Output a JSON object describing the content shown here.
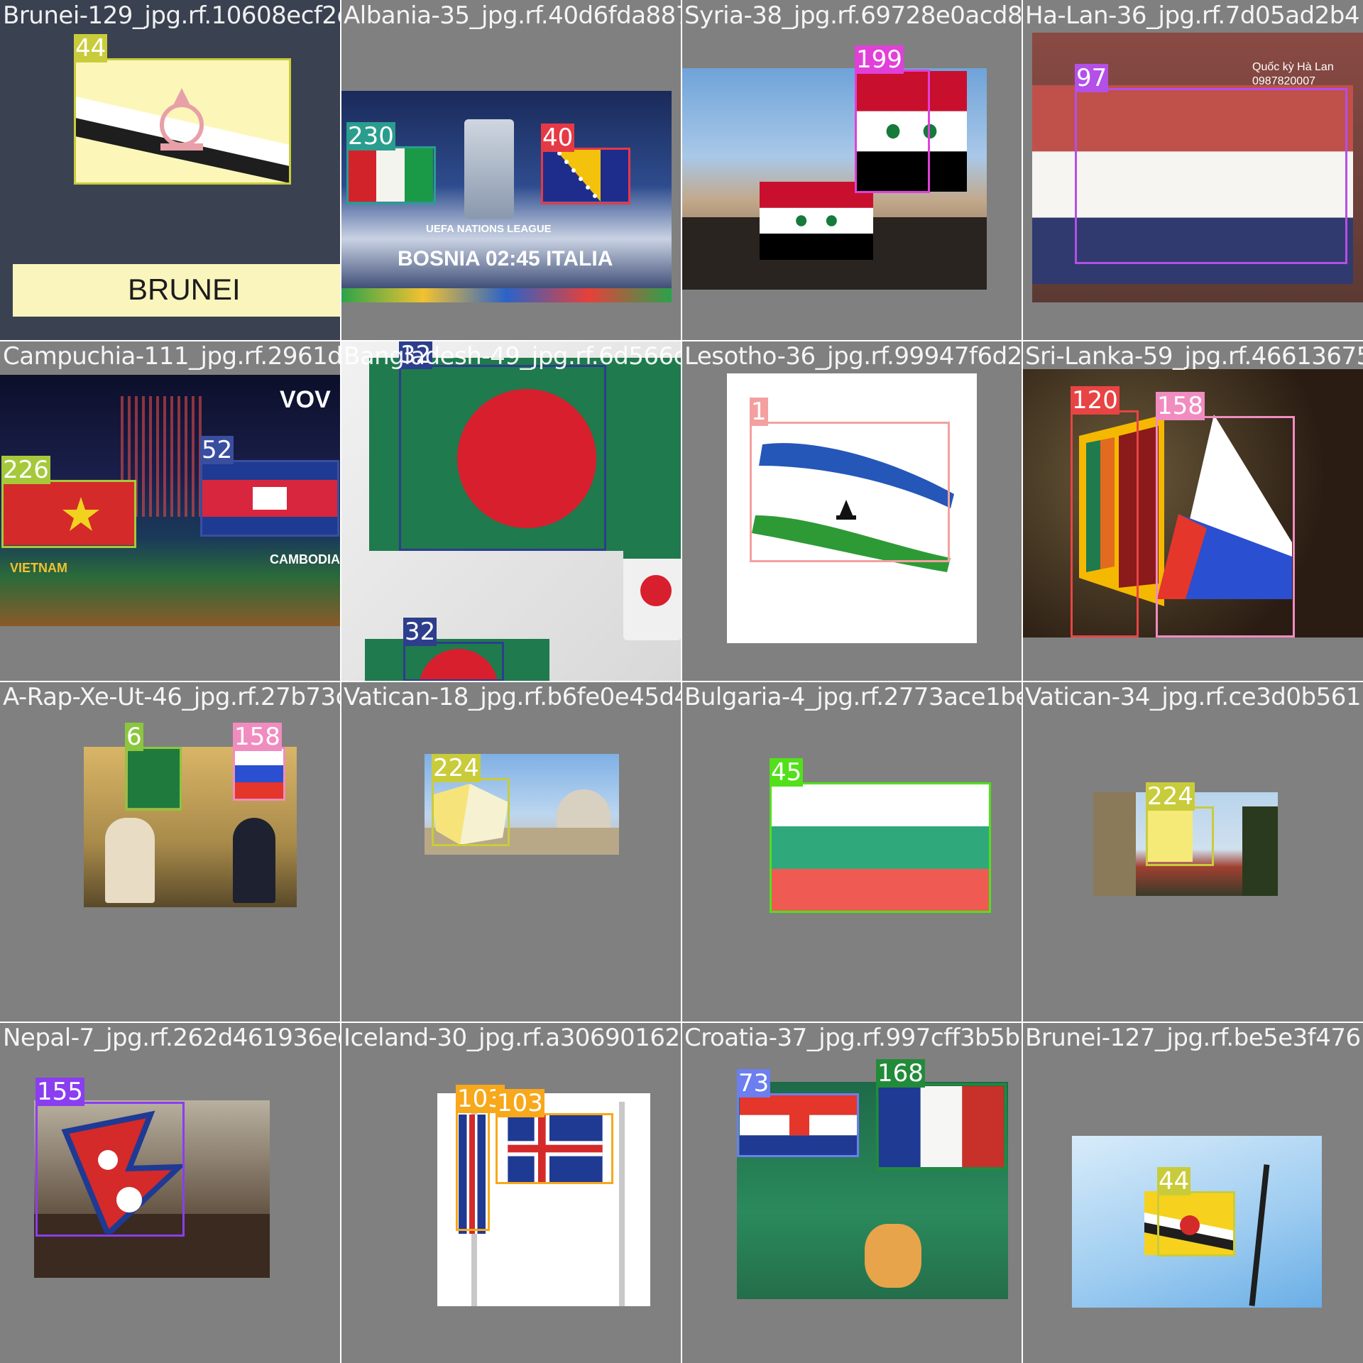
{
  "filenames": [
    "Brunei-129_jpg.rf.10608ecf2d09fb3f322af0",
    "Albania-35_jpg.rf.40d6fda887d56af.69728e0acd85",
    "Syria-38_jpg.rf.69728e0acd8f5dad47d1579",
    "Ha-Lan-36_jpg.rf.7d05ad2b4",
    "Campuchia-111_jpg.rf.2961d0ab5fd44129",
    "Bangladesh-49_jpg.rf.6d566c45f0465b5b9",
    "Lesotho-36_jpg.rf.99947f6d2d7229cd69e38",
    "Sri-Lanka-59_jpg.rf.466136752c",
    "A-Rap-Xe-Ut-46_jpg.rf.27b73d453724d3918",
    "Vatican-18_jpg.rf.b6fe0e45d4a4a901e4fe3",
    "Bulgaria-4_jpg.rf.2773ace1be7db8f504c5b",
    "Vatican-34_jpg.rf.ce3d0b561",
    "Nepal-7_jpg.rf.262d461936ed53a3209d9328",
    "Iceland-30_jpg.rf.a306901626da8c731e7ab",
    "Croatia-37_jpg.rf.997cff3b5b3e86c12b658",
    "Brunei-127_jpg.rf.be5e3f476"
  ],
  "labels": {
    "c0": [
      "44"
    ],
    "c1": [
      "230",
      "40"
    ],
    "c2": [
      "199"
    ],
    "c3": [
      "97"
    ],
    "c4": [
      "226",
      "52"
    ],
    "c5": [
      "32",
      "32"
    ],
    "c6": [
      "1"
    ],
    "c7": [
      "120",
      "158"
    ],
    "c8": [
      "6",
      "158"
    ],
    "c9": [
      "224"
    ],
    "c10": [
      "45"
    ],
    "c11": [
      "224"
    ],
    "c12": [
      "155"
    ],
    "c13": [
      "103",
      "103"
    ],
    "c14": [
      "73",
      "168"
    ],
    "c15": [
      "44"
    ]
  },
  "scene_text": {
    "brunei_caption": "BRUNEI",
    "uefa_match": "BOSNIA 02:45 ITALIA",
    "uefa_league": "UEFA NATIONS LEAGUE",
    "vov": "VOV",
    "vietnam": "VIETNAM",
    "cambodia": "CAMBODIA",
    "sign_line1": "Quốc kỳ Hà Lan",
    "sign_line2": "0987820007"
  },
  "box_colors": {
    "44": "#c9cc3a",
    "230": "#2a9d8f",
    "40": "#e63946",
    "199": "#e040d8",
    "97": "#b44fe8",
    "226": "#a5c93a",
    "52": "#3a4ea0",
    "32": "#2c3e8c",
    "1": "#f4a0a0",
    "120": "#e84444",
    "158": "#f08cc0",
    "6": "#8cc63f",
    "224": "#c9cc3a",
    "45": "#52e01a",
    "155": "#8a3ef0",
    "103": "#f7a81b",
    "73": "#6c7ef0",
    "168": "#228b3a"
  }
}
